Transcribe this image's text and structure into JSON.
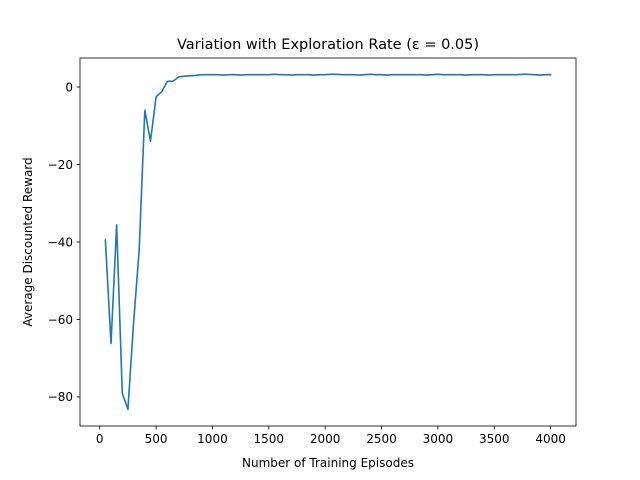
{
  "chart_data": {
    "type": "line",
    "title": "Variation with Exploration Rate (ε = 0.05)",
    "xlabel": "Number of Training Episodes",
    "ylabel": "Average Discounted Reward",
    "xlim": [
      -175,
      4225
    ],
    "ylim": [
      -87.5,
      7.5
    ],
    "xticks": [
      0,
      500,
      1000,
      1500,
      2000,
      2500,
      3000,
      3500,
      4000
    ],
    "yticks": [
      0,
      -20,
      -40,
      -60,
      -80
    ],
    "xtick_labels": [
      "0",
      "500",
      "1000",
      "1500",
      "2000",
      "2500",
      "3000",
      "3500",
      "4000"
    ],
    "ytick_labels": [
      "0",
      "−20",
      "−40",
      "−60",
      "−80"
    ],
    "grid": false,
    "series": [
      {
        "name": "ε = 0.05",
        "color": "#1f77b4",
        "x": [
          50,
          100,
          150,
          200,
          250,
          300,
          350,
          400,
          450,
          500,
          550,
          600,
          650,
          700,
          750,
          800,
          850,
          900,
          950,
          1000,
          1050,
          1100,
          1150,
          1200,
          1250,
          1300,
          1350,
          1400,
          1450,
          1500,
          1550,
          1600,
          1650,
          1700,
          1750,
          1800,
          1850,
          1900,
          1950,
          2000,
          2050,
          2100,
          2150,
          2200,
          2250,
          2300,
          2350,
          2400,
          2450,
          2500,
          2550,
          2600,
          2650,
          2700,
          2750,
          2800,
          2850,
          2900,
          2950,
          3000,
          3050,
          3100,
          3150,
          3200,
          3250,
          3300,
          3350,
          3400,
          3450,
          3500,
          3550,
          3600,
          3650,
          3700,
          3750,
          3800,
          3850,
          3900,
          3950,
          4000
        ],
        "values": [
          -39.5,
          -66.2,
          -35.6,
          -79.0,
          -83.2,
          -61.0,
          -42.0,
          -6.0,
          -14.0,
          -2.5,
          -1.2,
          1.5,
          1.5,
          2.6,
          2.8,
          2.9,
          3.0,
          3.2,
          3.2,
          3.2,
          3.2,
          3.1,
          3.2,
          3.2,
          3.1,
          3.2,
          3.2,
          3.2,
          3.2,
          3.2,
          3.3,
          3.2,
          3.2,
          3.1,
          3.2,
          3.2,
          3.2,
          3.1,
          3.2,
          3.2,
          3.3,
          3.3,
          3.2,
          3.2,
          3.2,
          3.1,
          3.2,
          3.3,
          3.2,
          3.2,
          3.1,
          3.2,
          3.2,
          3.2,
          3.2,
          3.2,
          3.2,
          3.1,
          3.2,
          3.3,
          3.2,
          3.2,
          3.2,
          3.2,
          3.1,
          3.2,
          3.2,
          3.2,
          3.1,
          3.2,
          3.2,
          3.2,
          3.2,
          3.2,
          3.3,
          3.3,
          3.2,
          3.1,
          3.2,
          3.2
        ]
      }
    ]
  }
}
